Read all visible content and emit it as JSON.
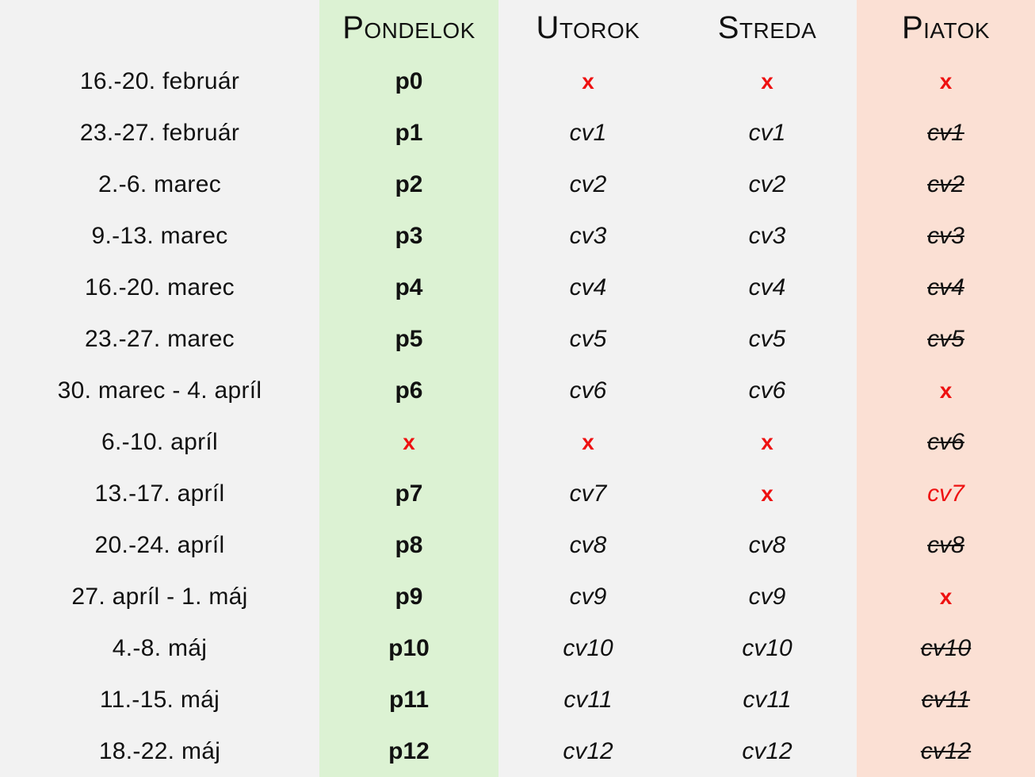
{
  "header": {
    "date": "",
    "days": [
      "Pondelok",
      "Utorok",
      "Streda",
      "Piatok"
    ]
  },
  "colors": {
    "page_bg": "#f2f2f2",
    "monday_bg": "#dcf2d3",
    "friday_bg": "#fbe0d4",
    "cancel_mark": "#ee1111",
    "text": "#111111"
  },
  "rows": [
    {
      "date": "16.-20. február",
      "mon": "p0",
      "tue": "x",
      "wed": "x",
      "fri": "x"
    },
    {
      "date": "23.-27. február",
      "mon": "p1",
      "tue": "cv1",
      "wed": "cv1",
      "fri": "cv1"
    },
    {
      "date": "2.-6. marec",
      "mon": "p2",
      "tue": "cv2",
      "wed": "cv2",
      "fri": "cv2"
    },
    {
      "date": "9.-13. marec",
      "mon": "p3",
      "tue": "cv3",
      "wed": "cv3",
      "fri": "cv3"
    },
    {
      "date": "16.-20. marec",
      "mon": "p4",
      "tue": "cv4",
      "wed": "cv4",
      "fri": "cv4"
    },
    {
      "date": "23.-27. marec",
      "mon": "p5",
      "tue": "cv5",
      "wed": "cv5",
      "fri": "cv5"
    },
    {
      "date": "30. marec - 4. apríl",
      "mon": "p6",
      "tue": "cv6",
      "wed": "cv6",
      "fri": "x"
    },
    {
      "date": "6.-10. apríl",
      "mon": "x",
      "tue": "x",
      "wed": "x",
      "fri": "cv6"
    },
    {
      "date": "13.-17. apríl",
      "mon": "p7",
      "tue": "cv7",
      "wed": "x",
      "fri": "cv7"
    },
    {
      "date": "20.-24. apríl",
      "mon": "p8",
      "tue": "cv8",
      "wed": "cv8",
      "fri": "cv8"
    },
    {
      "date": "27. apríl - 1. máj",
      "mon": "p9",
      "tue": "cv9",
      "wed": "cv9",
      "fri": "x"
    },
    {
      "date": "4.-8. máj",
      "mon": "p10",
      "tue": "cv10",
      "wed": "cv10",
      "fri": "cv10"
    },
    {
      "date": "11.-15. máj",
      "mon": "p11",
      "tue": "cv11",
      "wed": "cv11",
      "fri": "cv11"
    },
    {
      "date": "18.-22. máj",
      "mon": "p12",
      "tue": "cv12",
      "wed": "cv12",
      "fri": "cv12"
    }
  ]
}
